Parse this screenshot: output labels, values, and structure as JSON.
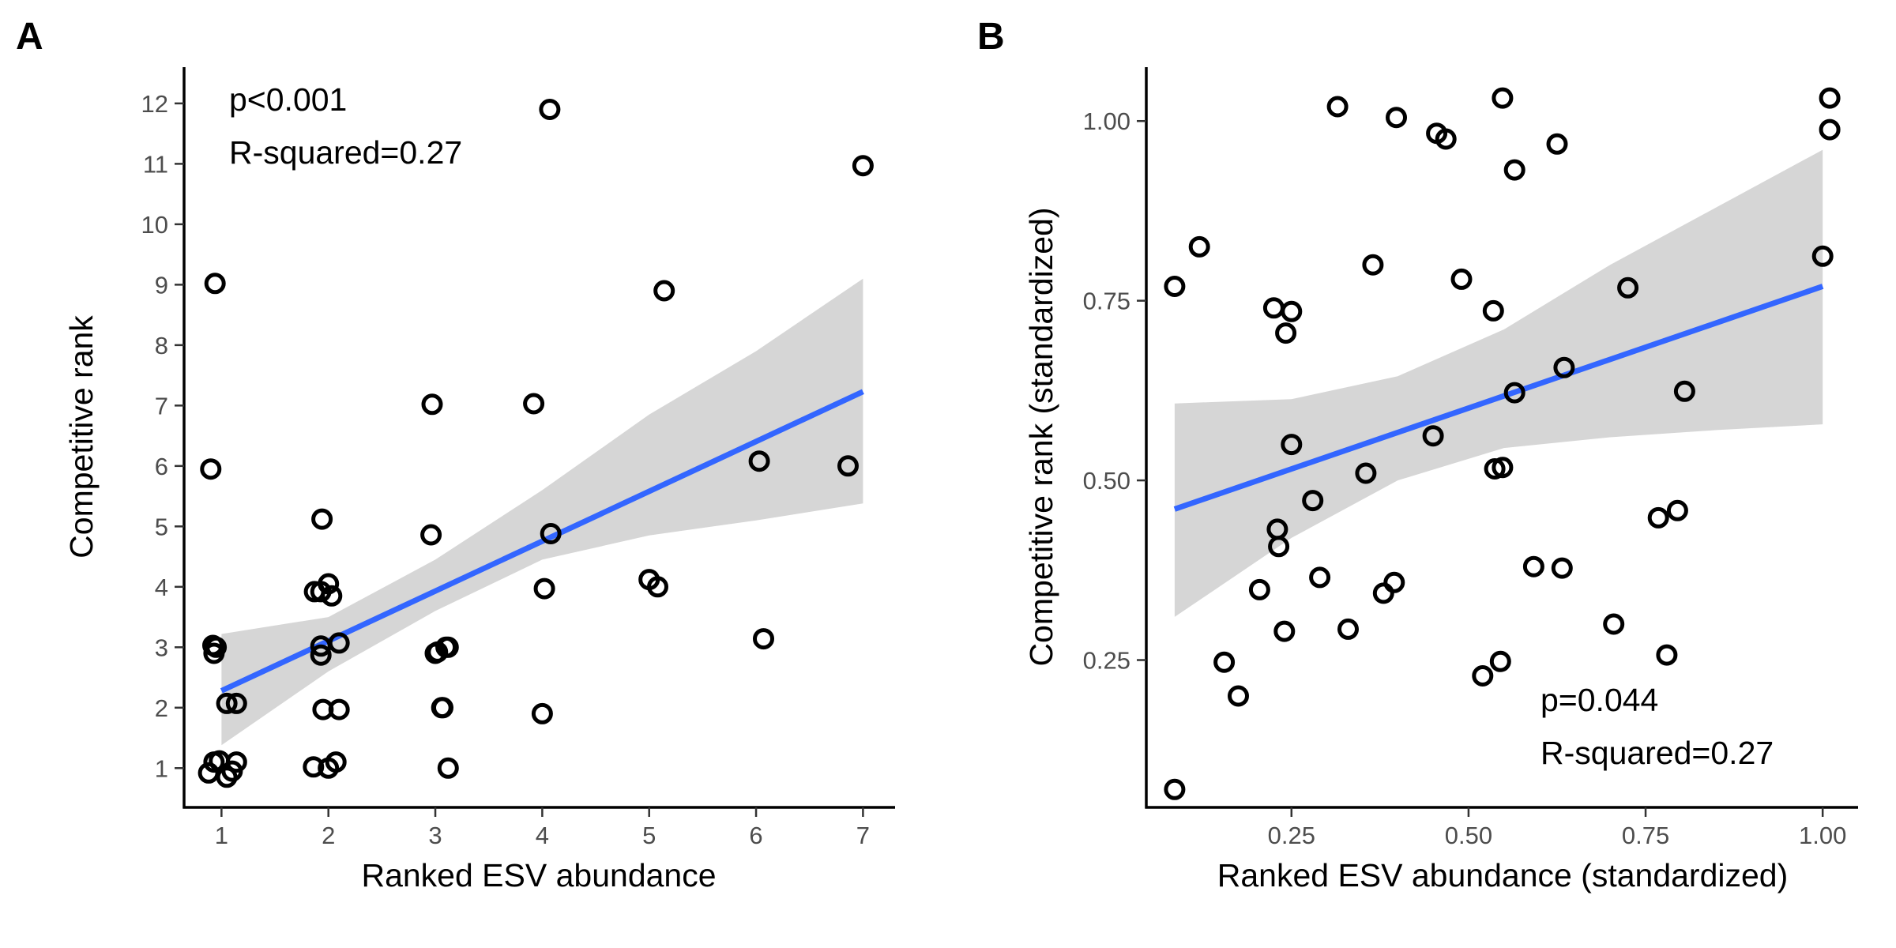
{
  "colors": {
    "fit_line": "#3366ff",
    "confidence_band": "#d6d6d6",
    "points": "#000000"
  },
  "chart_data": [
    {
      "panel": "A",
      "type": "scatter",
      "xlabel": "Ranked ESV abundance",
      "ylabel": "Competitive rank",
      "xlim": [
        0.65,
        7.3
      ],
      "ylim": [
        0.35,
        12.6
      ],
      "xticks": [
        1,
        2,
        3,
        4,
        5,
        6,
        7
      ],
      "yticks": [
        1,
        2,
        3,
        4,
        5,
        6,
        7,
        8,
        9,
        10,
        11,
        12
      ],
      "annotations": [
        "p<0.001",
        "R-squared=0.27"
      ],
      "annotation_position": "top-left",
      "points": [
        [
          0.88,
          0.92
        ],
        [
          0.98,
          1.12
        ],
        [
          1.05,
          0.85
        ],
        [
          1.1,
          0.95
        ],
        [
          1.14,
          1.1
        ],
        [
          0.93,
          1.1
        ],
        [
          0.92,
          3.03
        ],
        [
          0.93,
          2.9
        ],
        [
          0.95,
          3.0
        ],
        [
          1.05,
          2.07
        ],
        [
          1.14,
          2.07
        ],
        [
          0.9,
          5.95
        ],
        [
          0.94,
          9.02
        ],
        [
          1.86,
          1.02
        ],
        [
          2.0,
          1.0
        ],
        [
          2.07,
          1.1
        ],
        [
          1.95,
          1.97
        ],
        [
          2.1,
          1.97
        ],
        [
          1.93,
          2.87
        ],
        [
          1.93,
          3.02
        ],
        [
          2.1,
          3.07
        ],
        [
          1.87,
          3.92
        ],
        [
          1.93,
          3.92
        ],
        [
          2.0,
          4.05
        ],
        [
          2.03,
          3.85
        ],
        [
          1.94,
          5.12
        ],
        [
          2.96,
          4.86
        ],
        [
          2.97,
          7.02
        ],
        [
          3.0,
          2.9
        ],
        [
          3.02,
          2.92
        ],
        [
          3.1,
          3.0
        ],
        [
          3.12,
          3.0
        ],
        [
          3.06,
          2.0
        ],
        [
          3.07,
          2.0
        ],
        [
          3.12,
          1.0
        ],
        [
          3.92,
          7.03
        ],
        [
          4.0,
          1.9
        ],
        [
          4.02,
          3.97
        ],
        [
          4.08,
          4.88
        ],
        [
          4.07,
          11.9
        ],
        [
          5.0,
          4.12
        ],
        [
          5.08,
          4.0
        ],
        [
          5.14,
          8.9
        ],
        [
          6.03,
          6.08
        ],
        [
          6.07,
          3.14
        ],
        [
          6.86,
          6.0
        ],
        [
          7.0,
          10.97
        ]
      ],
      "fit": {
        "x": [
          1,
          7
        ],
        "y": [
          2.28,
          7.23
        ]
      },
      "ci": {
        "x": [
          1,
          2,
          3,
          4,
          5,
          6,
          7
        ],
        "lower": [
          1.38,
          2.6,
          3.6,
          4.45,
          4.85,
          5.1,
          5.38
        ],
        "upper": [
          3.22,
          3.5,
          4.45,
          5.6,
          6.85,
          7.9,
          9.1
        ]
      }
    },
    {
      "panel": "B",
      "type": "scatter",
      "xlabel": "Ranked ESV abundance (standardized)",
      "ylabel": "Competitive rank (standardized)",
      "xlim": [
        0.045,
        1.05
      ],
      "ylim": [
        0.045,
        1.075
      ],
      "xticks": [
        "0.25",
        "0.50",
        "0.75",
        "1.00"
      ],
      "yticks": [
        "0.25",
        "0.50",
        "0.75",
        "1.00"
      ],
      "annotations": [
        "p=0.044",
        "R-squared=0.27"
      ],
      "annotation_position": "bottom-right",
      "points": [
        [
          0.085,
          0.07
        ],
        [
          0.085,
          0.77
        ],
        [
          0.12,
          0.825
        ],
        [
          0.155,
          0.247
        ],
        [
          0.175,
          0.2
        ],
        [
          0.205,
          0.348
        ],
        [
          0.225,
          0.74
        ],
        [
          0.23,
          0.432
        ],
        [
          0.232,
          0.408
        ],
        [
          0.24,
          0.29
        ],
        [
          0.242,
          0.705
        ],
        [
          0.25,
          0.735
        ],
        [
          0.25,
          0.55
        ],
        [
          0.28,
          0.472
        ],
        [
          0.29,
          0.365
        ],
        [
          0.315,
          1.02
        ],
        [
          0.33,
          0.293
        ],
        [
          0.355,
          0.51
        ],
        [
          0.365,
          0.8
        ],
        [
          0.38,
          0.343
        ],
        [
          0.395,
          0.358
        ],
        [
          0.398,
          1.005
        ],
        [
          0.45,
          0.562
        ],
        [
          0.455,
          0.983
        ],
        [
          0.468,
          0.975
        ],
        [
          0.49,
          0.78
        ],
        [
          0.52,
          0.228
        ],
        [
          0.535,
          0.736
        ],
        [
          0.537,
          0.516
        ],
        [
          0.548,
          0.518
        ],
        [
          0.545,
          0.248
        ],
        [
          0.548,
          1.032
        ],
        [
          0.565,
          0.932
        ],
        [
          0.565,
          0.622
        ],
        [
          0.592,
          0.38
        ],
        [
          0.625,
          0.968
        ],
        [
          0.632,
          0.378
        ],
        [
          0.635,
          0.657
        ],
        [
          0.705,
          0.3
        ],
        [
          0.725,
          0.768
        ],
        [
          0.768,
          0.448
        ],
        [
          0.78,
          0.257
        ],
        [
          0.795,
          0.458
        ],
        [
          0.805,
          0.624
        ],
        [
          1.0,
          0.812
        ],
        [
          1.01,
          0.988
        ],
        [
          1.01,
          1.032
        ]
      ],
      "fit": {
        "x": [
          0.085,
          1.0
        ],
        "y": [
          0.46,
          0.77
        ]
      },
      "ci": {
        "x": [
          0.085,
          0.25,
          0.4,
          0.55,
          0.7,
          0.85,
          1.0
        ],
        "lower": [
          0.31,
          0.42,
          0.5,
          0.545,
          0.56,
          0.57,
          0.578
        ],
        "upper": [
          0.607,
          0.613,
          0.645,
          0.71,
          0.8,
          0.88,
          0.96
        ]
      }
    }
  ]
}
